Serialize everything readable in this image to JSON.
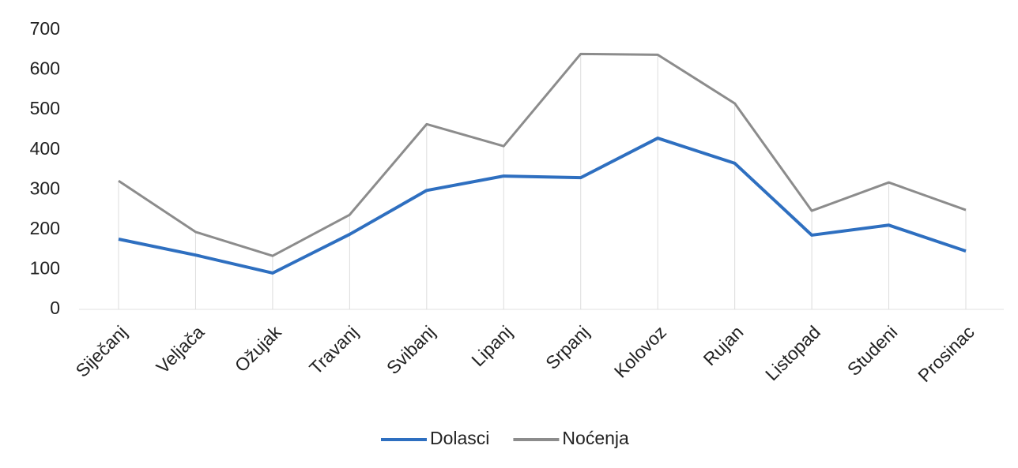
{
  "chart_data": {
    "type": "line",
    "categories": [
      "Siječanj",
      "Veljača",
      "Ožujak",
      "Travanj",
      "Svibanj",
      "Lipanj",
      "Srpanj",
      "Kolovoz",
      "Rujan",
      "Listopad",
      "Studeni",
      "Prosinac"
    ],
    "series": [
      {
        "name": "Dolasci",
        "color": "#2e6fc0",
        "values": [
          176,
          136,
          91,
          188,
          298,
          334,
          330,
          429,
          366,
          186,
          211,
          146
        ]
      },
      {
        "name": "Noćenja",
        "color": "#8c8c8c",
        "values": [
          322,
          194,
          134,
          237,
          464,
          409,
          640,
          638,
          516,
          247,
          318,
          249
        ]
      }
    ],
    "ylim": [
      0,
      700
    ],
    "yticks": [
      0,
      100,
      200,
      300,
      400,
      500,
      600,
      700
    ],
    "grid": false,
    "drop_lines": true,
    "legend": "bottom"
  }
}
